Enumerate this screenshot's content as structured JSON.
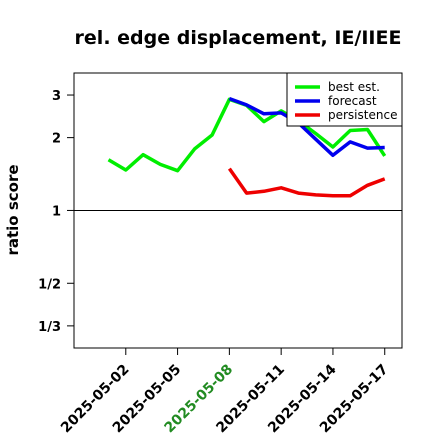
{
  "chart_data": {
    "type": "line",
    "title": "rel. edge displacement, IE/IIEE",
    "xlabel": "",
    "ylabel": "ratio score",
    "y_scale": "log",
    "ylim": [
      0.27,
      3.7
    ],
    "y_ticks": [
      {
        "value": 3,
        "label": "3"
      },
      {
        "value": 2,
        "label": "2"
      },
      {
        "value": 1,
        "label": "1"
      },
      {
        "value": 0.5,
        "label": "1/2"
      },
      {
        "value": 0.3333,
        "label": "1/3"
      }
    ],
    "reference_line": 1,
    "x_ticks": [
      {
        "date": "2025-05-02",
        "label": "2025-05-02",
        "color": "#000000"
      },
      {
        "date": "2025-05-05",
        "label": "2025-05-05",
        "color": "#000000"
      },
      {
        "date": "2025-05-08",
        "label": "2025-05-08",
        "color": "#228B22"
      },
      {
        "date": "2025-05-11",
        "label": "2025-05-11",
        "color": "#000000"
      },
      {
        "date": "2025-05-14",
        "label": "2025-05-14",
        "color": "#000000"
      },
      {
        "date": "2025-05-17",
        "label": "2025-05-17",
        "color": "#000000"
      }
    ],
    "xlim": [
      "2025-04-29",
      "2025-05-18"
    ],
    "legend_position": "top-right",
    "series": [
      {
        "name": "best est.",
        "color": "#00EE00",
        "points": [
          {
            "x": "2025-05-01",
            "y": 1.62
          },
          {
            "x": "2025-05-02",
            "y": 1.47
          },
          {
            "x": "2025-05-03",
            "y": 1.7
          },
          {
            "x": "2025-05-04",
            "y": 1.55
          },
          {
            "x": "2025-05-05",
            "y": 1.46
          },
          {
            "x": "2025-05-06",
            "y": 1.8
          },
          {
            "x": "2025-05-07",
            "y": 2.05
          },
          {
            "x": "2025-05-08",
            "y": 2.88
          },
          {
            "x": "2025-05-09",
            "y": 2.72
          },
          {
            "x": "2025-05-10",
            "y": 2.33
          },
          {
            "x": "2025-05-11",
            "y": 2.58
          },
          {
            "x": "2025-05-12",
            "y": 2.35
          },
          {
            "x": "2025-05-13",
            "y": 2.08
          },
          {
            "x": "2025-05-14",
            "y": 1.83
          },
          {
            "x": "2025-05-15",
            "y": 2.14
          },
          {
            "x": "2025-05-16",
            "y": 2.16
          },
          {
            "x": "2025-05-17",
            "y": 1.68
          }
        ]
      },
      {
        "name": "forecast",
        "color": "#0000EE",
        "points": [
          {
            "x": "2025-05-08",
            "y": 2.9
          },
          {
            "x": "2025-05-09",
            "y": 2.73
          },
          {
            "x": "2025-05-10",
            "y": 2.51
          },
          {
            "x": "2025-05-11",
            "y": 2.53
          },
          {
            "x": "2025-05-12",
            "y": 2.3
          },
          {
            "x": "2025-05-13",
            "y": 1.97
          },
          {
            "x": "2025-05-14",
            "y": 1.69
          },
          {
            "x": "2025-05-15",
            "y": 1.92
          },
          {
            "x": "2025-05-16",
            "y": 1.81
          },
          {
            "x": "2025-05-17",
            "y": 1.82
          }
        ]
      },
      {
        "name": "persistence",
        "color": "#EE0000",
        "points": [
          {
            "x": "2025-05-08",
            "y": 1.49
          },
          {
            "x": "2025-05-09",
            "y": 1.18
          },
          {
            "x": "2025-05-10",
            "y": 1.2
          },
          {
            "x": "2025-05-11",
            "y": 1.24
          },
          {
            "x": "2025-05-12",
            "y": 1.18
          },
          {
            "x": "2025-05-13",
            "y": 1.16
          },
          {
            "x": "2025-05-14",
            "y": 1.15
          },
          {
            "x": "2025-05-15",
            "y": 1.15
          },
          {
            "x": "2025-05-16",
            "y": 1.27
          },
          {
            "x": "2025-05-17",
            "y": 1.35
          }
        ]
      }
    ]
  }
}
